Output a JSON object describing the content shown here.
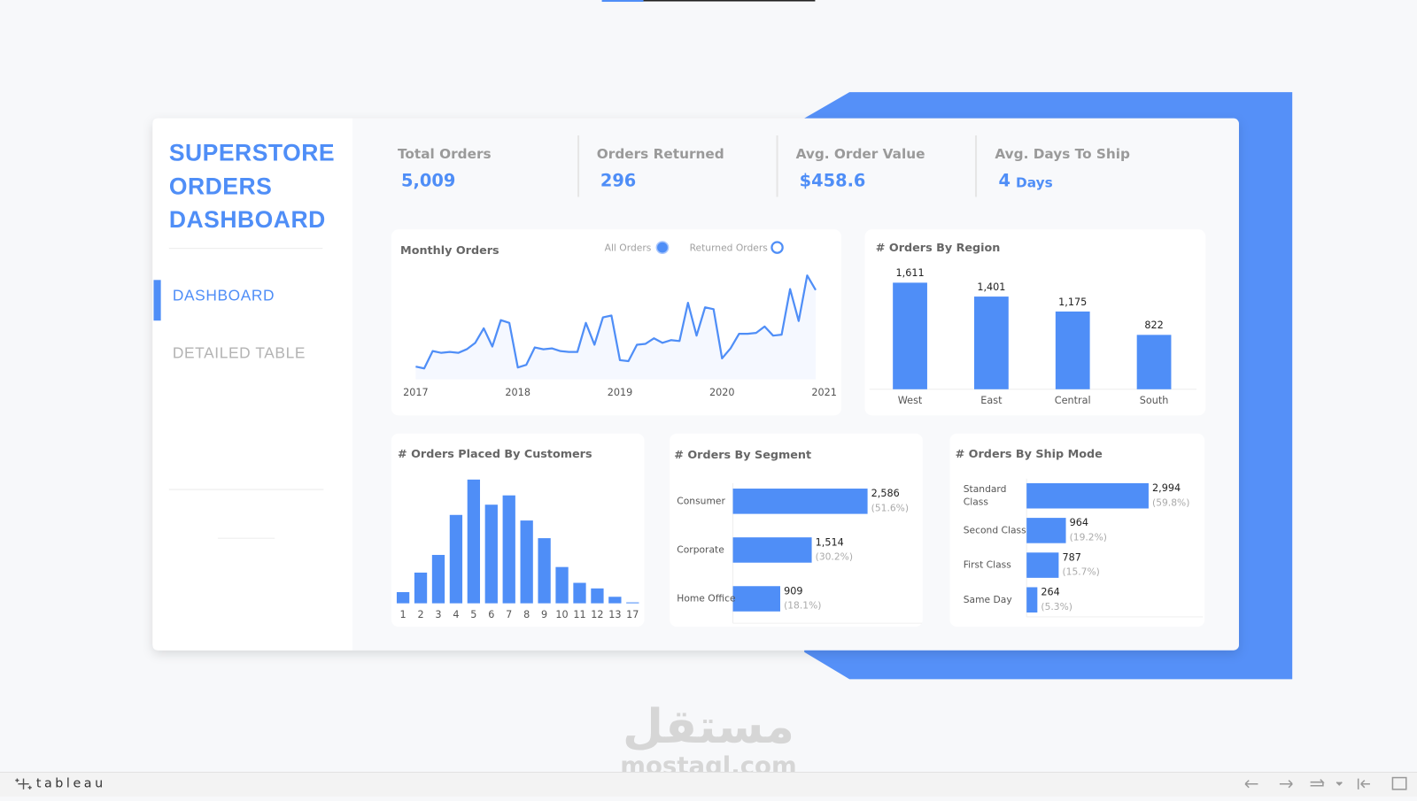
{
  "sidebar": {
    "title": [
      "SUPERSTORE",
      "ORDERS",
      "DASHBOARD"
    ],
    "nav": [
      "DASHBOARD",
      "DETAILED TABLE"
    ],
    "active": 0
  },
  "kpis": [
    {
      "label": "Total Orders",
      "value": "5,009"
    },
    {
      "label": "Orders Returned",
      "value": "296"
    },
    {
      "label": "Avg. Order Value",
      "value": "$458.6"
    },
    {
      "label": "Avg. Days To Ship",
      "value": "4",
      "unit": "Days"
    }
  ],
  "chart_data": [
    {
      "type": "line",
      "title": "Monthly Orders",
      "legend": [
        {
          "name": "All Orders",
          "marker": "filled"
        },
        {
          "name": "Returned Orders",
          "marker": "hollow"
        }
      ],
      "series": [
        {
          "name": "All Orders",
          "color": "#4f8ef7",
          "values": [
            42,
            36,
            93,
            87,
            90,
            87,
            99,
            120,
            168,
            108,
            195,
            186,
            39,
            48,
            105,
            99,
            102,
            93,
            90,
            90,
            186,
            114,
            204,
            210,
            63,
            60,
            114,
            117,
            135,
            120,
            129,
            126,
            252,
            144,
            237,
            231,
            69,
            102,
            150,
            150,
            153,
            174,
            144,
            147,
            297,
            192,
            342,
            294
          ]
        }
      ],
      "xlim": [
        2017,
        2021
      ],
      "xticks": [
        2017,
        2018,
        2019,
        2020,
        2021
      ],
      "area": true
    },
    {
      "type": "bar",
      "title": "# Orders By Region",
      "categories": [
        "West",
        "East",
        "Central",
        "South"
      ],
      "values": [
        1611,
        1401,
        1175,
        822
      ],
      "value_labels": [
        "1,611",
        "1,401",
        "1,175",
        "822"
      ],
      "color": "#4f8ef7",
      "horizontal": false
    },
    {
      "type": "bar",
      "title": "# Orders Placed By Customers",
      "categories": [
        1,
        2,
        3,
        4,
        5,
        6,
        7,
        8,
        9,
        10,
        11,
        12,
        13,
        17
      ],
      "values": [
        12,
        33,
        52,
        95,
        133,
        106,
        116,
        89,
        70,
        39,
        22,
        16,
        7,
        1
      ],
      "color": "#4f8ef7",
      "horizontal": false
    },
    {
      "type": "bar",
      "title": "# Orders By Segment",
      "categories": [
        "Consumer",
        "Corporate",
        "Home Office"
      ],
      "values": [
        2586,
        1514,
        909
      ],
      "value_labels": [
        "2,586",
        "1,514",
        "909"
      ],
      "share_labels": [
        "(51.6%)",
        "(30.2%)",
        "(18.1%)"
      ],
      "color": "#4f8ef7",
      "horizontal": true
    },
    {
      "type": "bar",
      "title": "# Orders By Ship Mode",
      "categories": [
        "Standard Class",
        "Second Class",
        "First Class",
        "Same Day"
      ],
      "values": [
        2994,
        964,
        787,
        264
      ],
      "value_labels": [
        "2,994",
        "964",
        "787",
        "264"
      ],
      "share_labels": [
        "(59.8%)",
        "(19.2%)",
        "(15.7%)",
        "(5.3%)"
      ],
      "color": "#4f8ef7",
      "horizontal": true
    }
  ],
  "watermark": {
    "arabic": "مستقل",
    "latin": "mostaql.com"
  },
  "toolbar": {
    "brand": "tableau"
  }
}
